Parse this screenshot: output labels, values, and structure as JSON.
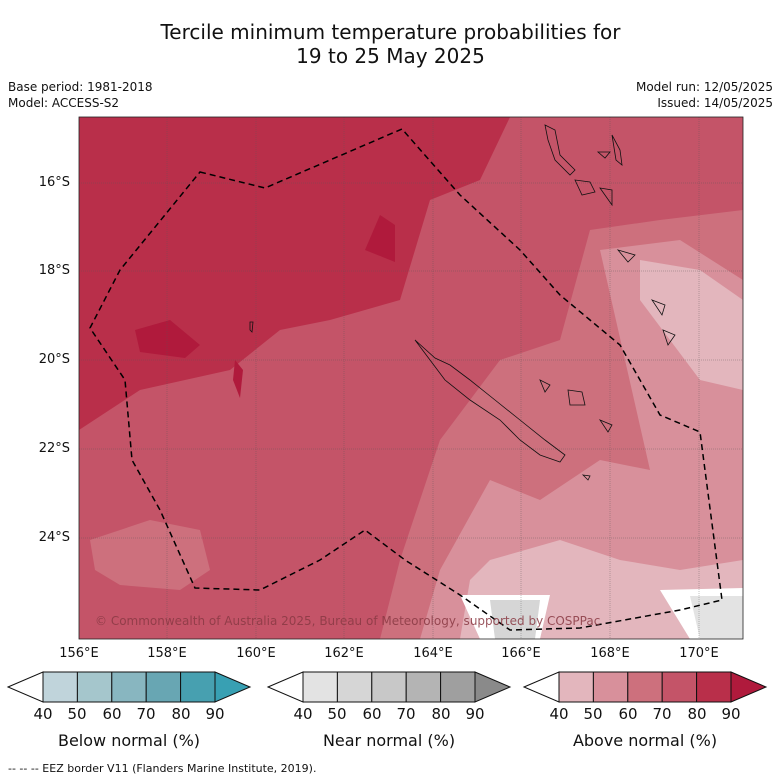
{
  "title_line1": "Tercile minimum temperature probabilities for",
  "title_line2": "19 to 25 May 2025",
  "meta_left": {
    "base_period": "Base period: 1981-2018",
    "model": "Model: ACCESS-S2"
  },
  "meta_right": {
    "model_run": "Model run: 12/05/2025",
    "issued": "Issued: 14/05/2025"
  },
  "lat_ticks": [
    "16°S",
    "18°S",
    "20°S",
    "22°S",
    "24°S"
  ],
  "lon_ticks": [
    "156°E",
    "158°E",
    "160°E",
    "162°E",
    "164°E",
    "166°E",
    "168°E",
    "170°E"
  ],
  "copyright": "© Commonwealth of Australia 2025, Bureau of Meteorology, supported by COSPPac",
  "colorbars": [
    {
      "label": "Below normal (%)",
      "ticks": [
        "40",
        "50",
        "60",
        "70",
        "80",
        "90"
      ],
      "colors": [
        "#c0d4db",
        "#a5c6cc",
        "#88b6c0",
        "#68a6b3",
        "#47a0b0",
        "#38a0b3"
      ]
    },
    {
      "label": "Near normal (%)",
      "ticks": [
        "40",
        "50",
        "60",
        "70",
        "80",
        "90"
      ],
      "colors": [
        "#e3e3e3",
        "#d6d6d6",
        "#c8c8c8",
        "#b4b4b4",
        "#9f9f9f",
        "#8a8a8a"
      ]
    },
    {
      "label": "Above normal (%)",
      "ticks": [
        "40",
        "50",
        "60",
        "70",
        "80",
        "90"
      ],
      "colors": [
        "#e3b6bd",
        "#d8909b",
        "#cd707d",
        "#c45468",
        "#b92f4a",
        "#b01a3c"
      ]
    }
  ],
  "footnote": "--  --  -- EEZ border V11 (Flanders Marine Institute, 2019)."
}
